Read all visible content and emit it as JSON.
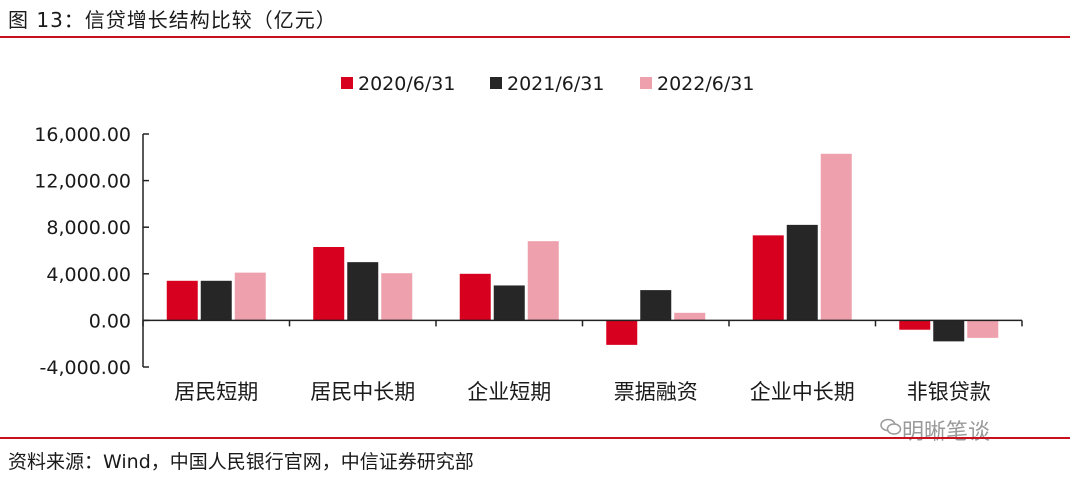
{
  "header": {
    "title": "图 13：信贷增长结构比较（亿元）"
  },
  "footer": {
    "source": "资料来源：Wind，中国人民银行官网，中信证券研究部"
  },
  "watermark": {
    "text": "明晰笔谈",
    "icon": "wechat-icon"
  },
  "chart_data": {
    "type": "bar",
    "categories": [
      "居民短期",
      "居民中长期",
      "企业短期",
      "票据融资",
      "企业中长期",
      "非银贷款"
    ],
    "series": [
      {
        "name": "2020/6/31",
        "color": "#d7001e",
        "values": [
          3400,
          6300,
          4000,
          -2100,
          7300,
          -800
        ]
      },
      {
        "name": "2021/6/31",
        "color": "#262626",
        "values": [
          3400,
          5000,
          3000,
          2600,
          8200,
          -1800
        ]
      },
      {
        "name": "2022/6/31",
        "color": "#eea0ac",
        "values": [
          4100,
          4050,
          6800,
          650,
          14300,
          -1500
        ]
      }
    ],
    "yticks": [
      "16,000.00",
      "12,000.00",
      "8,000.00",
      "4,000.00",
      "0.00",
      "-4,000.00"
    ],
    "ytick_values": [
      16000,
      12000,
      8000,
      4000,
      0,
      -4000
    ],
    "ylim": [
      -4000,
      16000
    ],
    "legend_position": "top-center",
    "grid": false
  }
}
